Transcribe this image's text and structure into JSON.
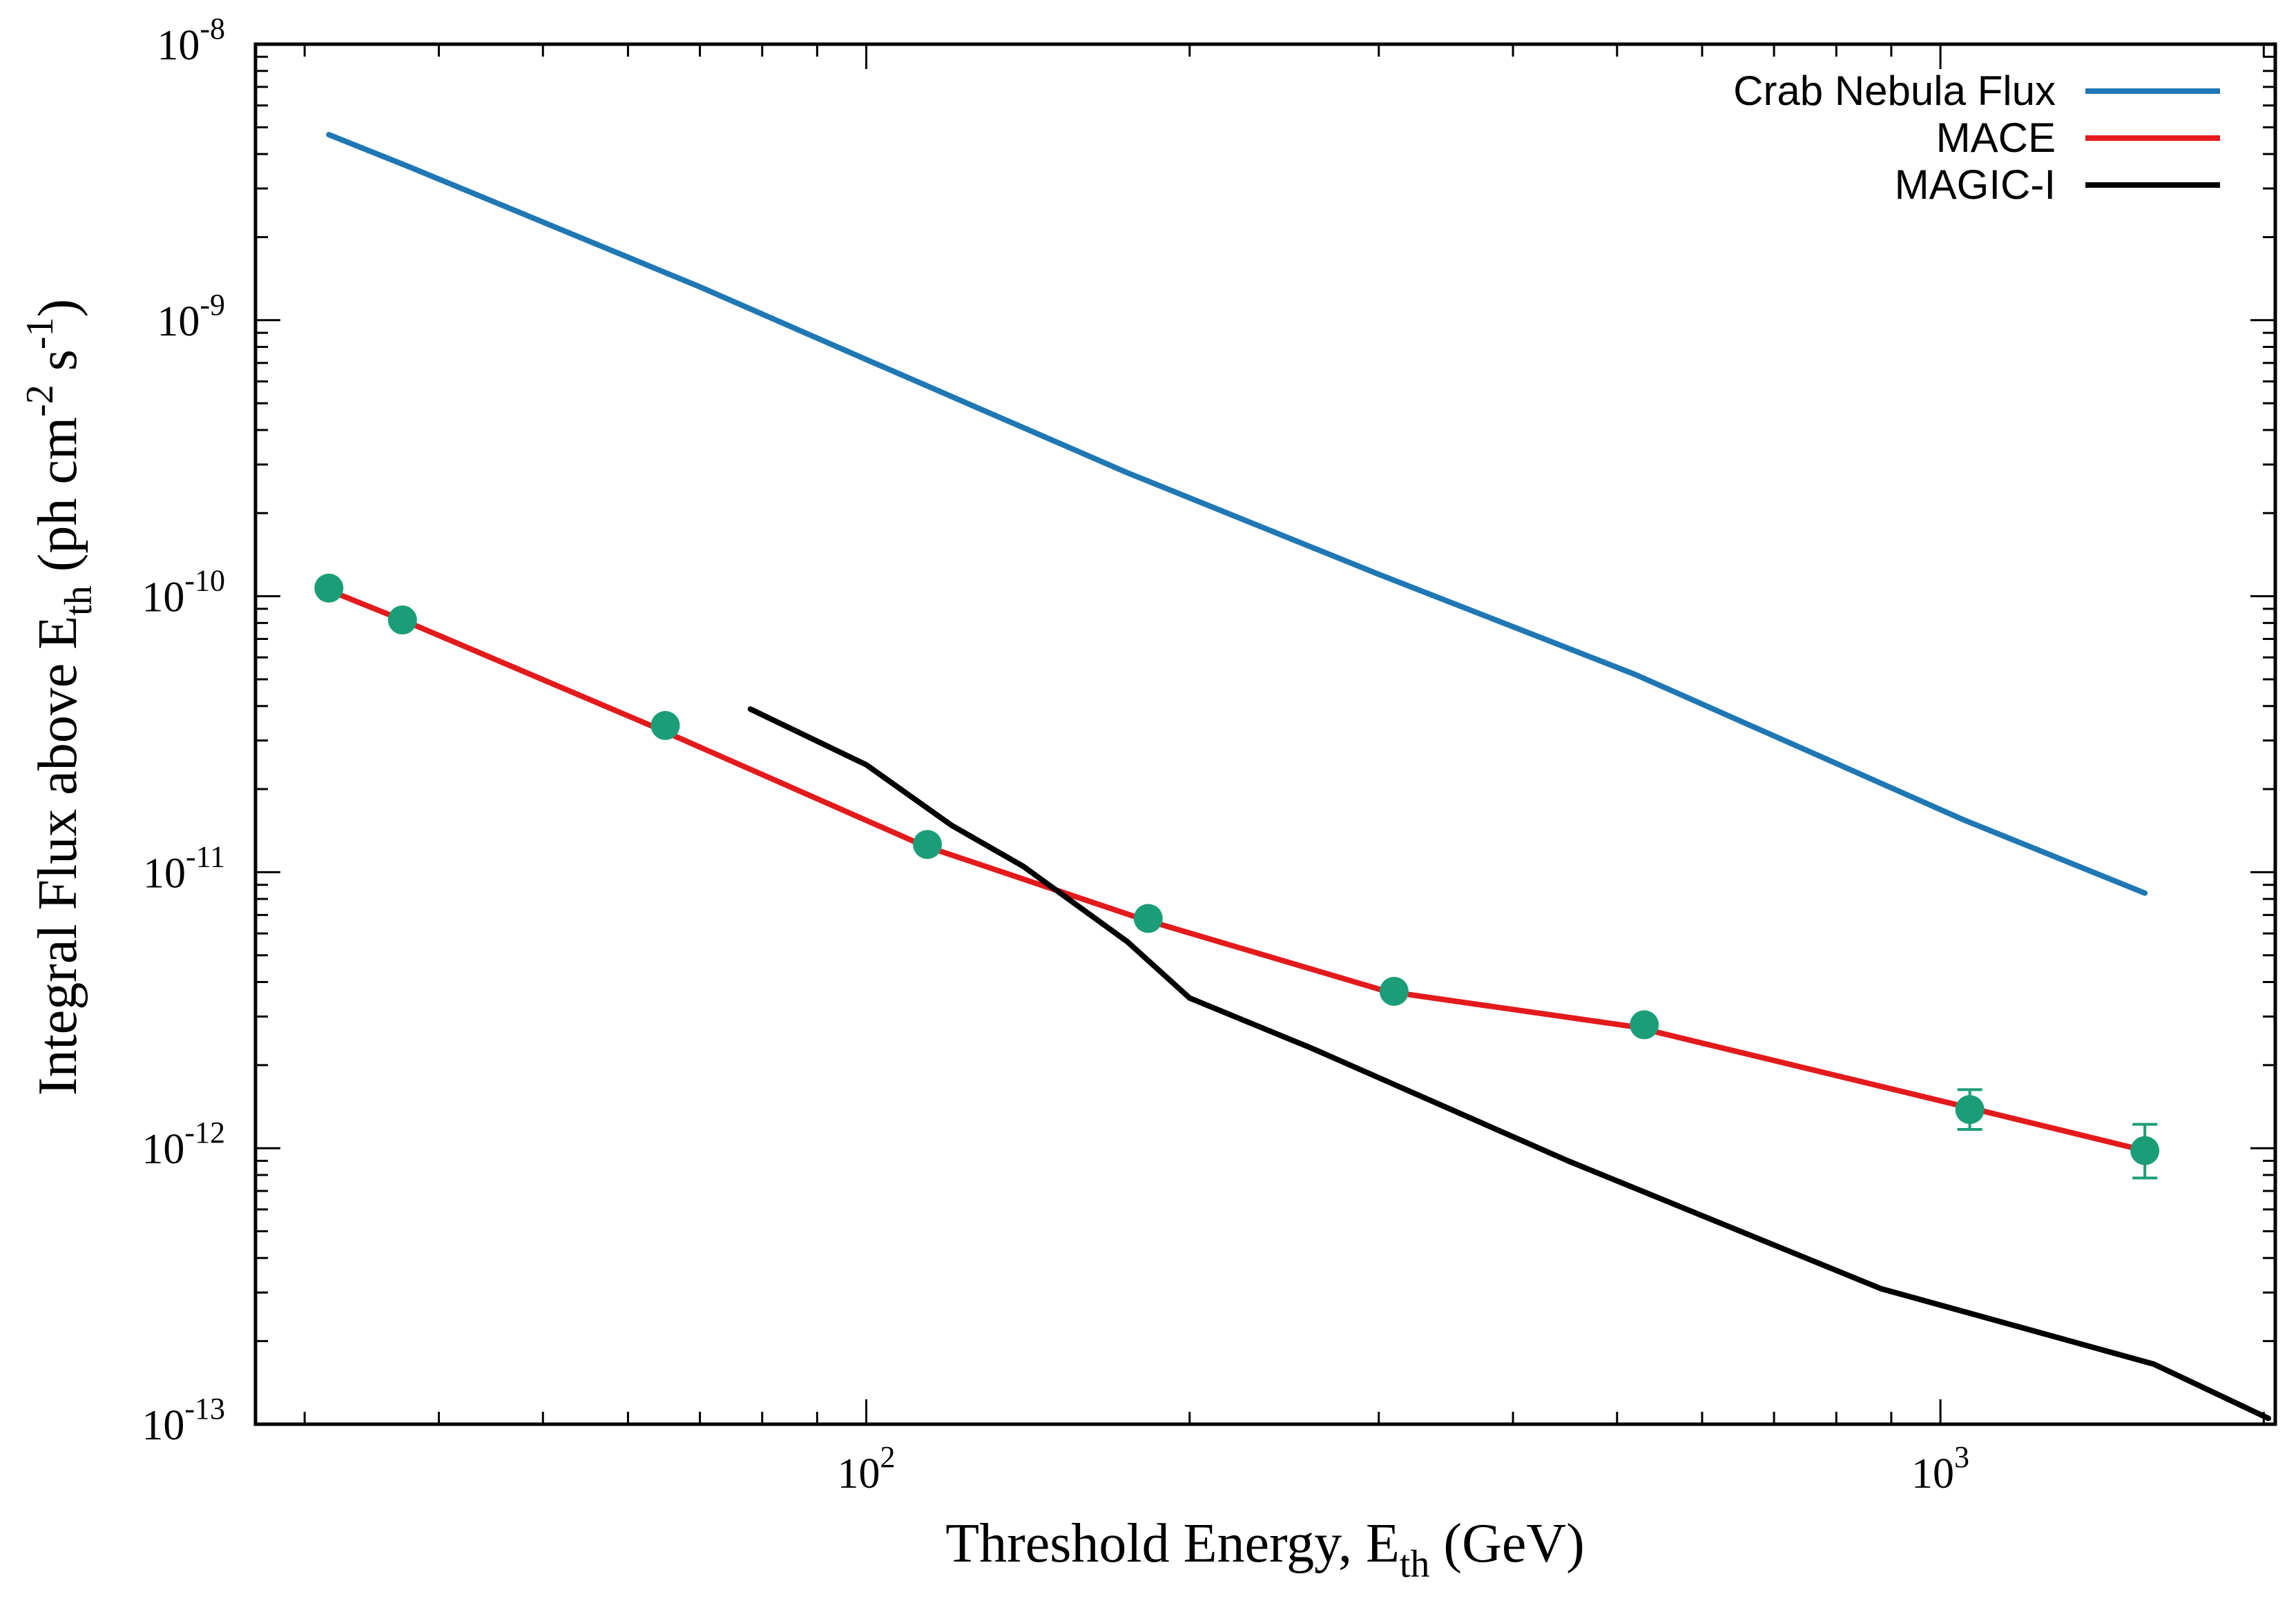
{
  "chart_data": {
    "type": "line",
    "xscale": "log",
    "yscale": "log",
    "xlim": [
      27,
      2050
    ],
    "ylim": [
      1e-13,
      1e-08
    ],
    "xlabel": {
      "main": "Threshold Energy, E",
      "sub": "th",
      "tail": " (GeV)"
    },
    "ylabel": {
      "main": "Integral Flux above E",
      "sub": "th",
      "mid": " (ph cm",
      "sup1": "-2",
      "mid2": " s",
      "sup2": "-1",
      "tail": ")"
    },
    "x_ticks": [
      {
        "value": 100,
        "base": "10",
        "exp": "2"
      },
      {
        "value": 1000,
        "base": "10",
        "exp": "3"
      }
    ],
    "y_ticks": [
      {
        "value": 1e-13,
        "base": "10",
        "exp": "-13"
      },
      {
        "value": 1e-12,
        "base": "10",
        "exp": "-12"
      },
      {
        "value": 1e-11,
        "base": "10",
        "exp": "-11"
      },
      {
        "value": 1e-10,
        "base": "10",
        "exp": "-10"
      },
      {
        "value": 1e-09,
        "base": "10",
        "exp": "-9"
      },
      {
        "value": 1e-08,
        "base": "10",
        "exp": "-8"
      }
    ],
    "legend_position": "top-right",
    "series": [
      {
        "name": "Crab Nebula Flux",
        "color": "#1f77b4",
        "x": [
          31.6,
          37.5,
          70,
          100,
          175,
          300,
          520,
          1050,
          1550
        ],
        "y": [
          4.7e-09,
          3.6e-09,
          1.32e-09,
          7.2e-10,
          2.8e-10,
          1.2e-10,
          5.2e-11,
          1.55e-11,
          8.4e-12
        ]
      },
      {
        "name": "MACE",
        "color": "#e31a1c",
        "x": [
          31.6,
          37,
          63,
          113,
          180,
          305,
          520,
          1065,
          1550
        ],
        "y": [
          1.05e-10,
          8.2e-11,
          3.4e-11,
          1.25e-11,
          6.8e-12,
          3.7e-12,
          2.75e-12,
          1.4e-12,
          9.8e-13
        ],
        "points": [
          {
            "x": 31.6,
            "y": 1.07e-10
          },
          {
            "x": 37,
            "y": 8.2e-11
          },
          {
            "x": 65,
            "y": 3.4e-11
          },
          {
            "x": 114,
            "y": 1.26e-11
          },
          {
            "x": 183,
            "y": 6.8e-12
          },
          {
            "x": 310,
            "y": 3.7e-12
          },
          {
            "x": 530,
            "y": 2.8e-12
          },
          {
            "x": 1065,
            "y": 1.38e-12,
            "ylo": 1.17e-12,
            "yhi": 1.63e-12
          },
          {
            "x": 1550,
            "y": 9.8e-13,
            "ylo": 7.8e-13,
            "yhi": 1.22e-12
          }
        ],
        "point_color": "#1b9e77"
      },
      {
        "name": "MAGIC-I",
        "color": "#000000",
        "x": [
          78,
          100,
          120,
          140,
          175,
          200,
          260,
          450,
          880,
          1580,
          2020
        ],
        "y": [
          3.9e-11,
          2.45e-11,
          1.48e-11,
          1.05e-11,
          5.6e-12,
          3.5e-12,
          2.3e-12,
          9e-13,
          3.1e-13,
          1.65e-13,
          1.05e-13
        ]
      }
    ]
  }
}
